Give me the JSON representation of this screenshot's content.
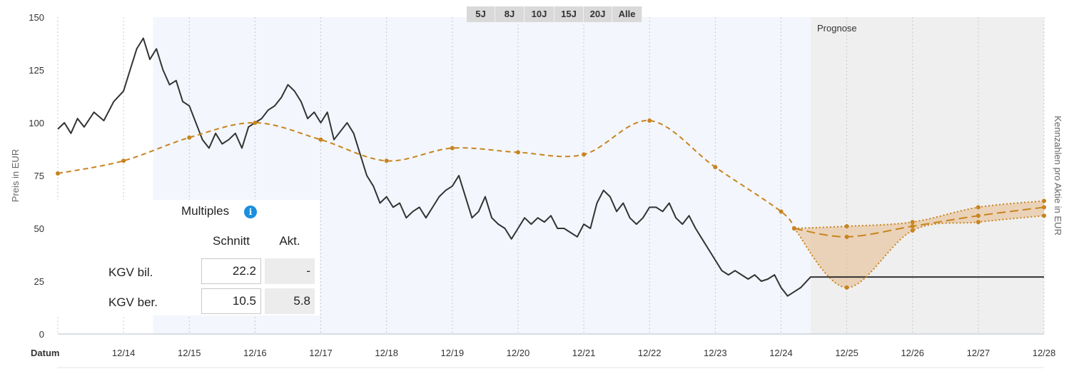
{
  "range_buttons": [
    "5J",
    "8J",
    "10J",
    "15J",
    "20J",
    "Alle"
  ],
  "prognose_label": "Prognose",
  "multiples": {
    "title": "Multiples",
    "col_schnitt": "Schnitt",
    "col_akt": "Akt.",
    "rows": [
      {
        "label": "KGV bil.",
        "schnitt": "22.2",
        "akt": "-"
      },
      {
        "label": "KGV ber.",
        "schnitt": "10.5",
        "akt": "5.8"
      }
    ]
  },
  "chart_data": {
    "type": "line",
    "ylabel_left": "Preis in EUR",
    "ylabel_right": "Kennzahlen pro Aktie in EUR",
    "xlabel": "Datum",
    "x_ticks": [
      "12/14",
      "12/15",
      "12/16",
      "12/17",
      "12/18",
      "12/19",
      "12/20",
      "12/21",
      "12/22",
      "12/23",
      "12/24",
      "12/25",
      "12/26",
      "12/27",
      "12/28"
    ],
    "y_ticks": [
      0,
      25,
      50,
      75,
      100,
      125,
      150
    ],
    "ylim": [
      0,
      150
    ],
    "xlim": [
      2013.0,
      2028.0
    ],
    "forecast_start": 2024.45,
    "colors": {
      "price": "#333333",
      "valuation": "#c8841e",
      "forecast_band": "#e6b98a",
      "prognose_bg": "#efefef",
      "highlight_bg": "#f3f6fc"
    },
    "series": [
      {
        "kind": "price",
        "x": [
          2013.0,
          2013.1,
          2013.2,
          2013.3,
          2013.4,
          2013.55,
          2013.7,
          2013.85,
          2014.0,
          2014.1,
          2014.2,
          2014.3,
          2014.4,
          2014.5,
          2014.6,
          2014.7,
          2014.8,
          2014.9,
          2015.0,
          2015.1,
          2015.2,
          2015.3,
          2015.4,
          2015.5,
          2015.6,
          2015.7,
          2015.8,
          2015.9,
          2016.0,
          2016.1,
          2016.2,
          2016.3,
          2016.4,
          2016.5,
          2016.6,
          2016.7,
          2016.8,
          2016.9,
          2017.0,
          2017.1,
          2017.2,
          2017.3,
          2017.4,
          2017.5,
          2017.6,
          2017.7,
          2017.8,
          2017.9,
          2018.0,
          2018.1,
          2018.2,
          2018.3,
          2018.4,
          2018.5,
          2018.6,
          2018.7,
          2018.8,
          2018.9,
          2019.0,
          2019.1,
          2019.2,
          2019.3,
          2019.4,
          2019.5,
          2019.6,
          2019.7,
          2019.8,
          2019.9,
          2020.0,
          2020.1,
          2020.2,
          2020.3,
          2020.4,
          2020.5,
          2020.6,
          2020.7,
          2020.8,
          2020.9,
          2021.0,
          2021.1,
          2021.2,
          2021.3,
          2021.4,
          2021.5,
          2021.6,
          2021.7,
          2021.8,
          2021.9,
          2022.0,
          2022.1,
          2022.2,
          2022.3,
          2022.4,
          2022.5,
          2022.6,
          2022.7,
          2022.8,
          2022.9,
          2023.0,
          2023.1,
          2023.2,
          2023.3,
          2023.4,
          2023.5,
          2023.6,
          2023.7,
          2023.8,
          2023.9,
          2024.0,
          2024.1,
          2024.2,
          2024.3,
          2024.45,
          2028.0
        ],
        "y": [
          97,
          100,
          95,
          102,
          98,
          105,
          101,
          110,
          115,
          125,
          135,
          140,
          130,
          135,
          125,
          118,
          120,
          110,
          108,
          100,
          92,
          88,
          95,
          90,
          92,
          95,
          88,
          98,
          100,
          102,
          106,
          108,
          112,
          118,
          115,
          110,
          102,
          105,
          100,
          105,
          92,
          96,
          100,
          95,
          85,
          75,
          70,
          62,
          65,
          60,
          62,
          55,
          58,
          60,
          55,
          60,
          65,
          68,
          70,
          75,
          65,
          55,
          58,
          65,
          55,
          52,
          50,
          45,
          50,
          55,
          52,
          55,
          53,
          56,
          50,
          50,
          48,
          46,
          52,
          50,
          62,
          68,
          65,
          58,
          62,
          55,
          52,
          55,
          60,
          60,
          58,
          62,
          55,
          52,
          56,
          50,
          45,
          40,
          35,
          30,
          28,
          30,
          28,
          26,
          28,
          25,
          26,
          28,
          22,
          18,
          20,
          22,
          27,
          27
        ]
      },
      {
        "kind": "valuation",
        "x": [
          2013.0,
          2014.0,
          2015.0,
          2016.0,
          2017.0,
          2018.0,
          2019.0,
          2020.0,
          2021.0,
          2022.0,
          2023.0,
          2024.0,
          2024.2
        ],
        "y": [
          76,
          82,
          93,
          100,
          92,
          82,
          88,
          86,
          85,
          101,
          79,
          58,
          50
        ]
      },
      {
        "kind": "forecast_mid",
        "x": [
          2024.2,
          2025.0,
          2026.0,
          2027.0,
          2028.0
        ],
        "y": [
          50,
          46,
          51,
          56,
          60
        ]
      },
      {
        "kind": "forecast_high",
        "x": [
          2024.2,
          2025.0,
          2026.0,
          2027.0,
          2028.0
        ],
        "y": [
          50,
          51,
          53,
          60,
          63
        ]
      },
      {
        "kind": "forecast_low",
        "x": [
          2024.2,
          2025.0,
          2026.0,
          2027.0,
          2028.0
        ],
        "y": [
          50,
          22,
          49,
          53,
          56
        ]
      }
    ]
  }
}
